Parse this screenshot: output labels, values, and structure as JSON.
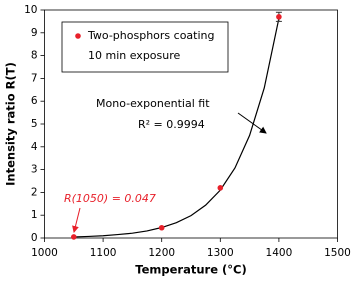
{
  "chart_data": {
    "type": "scatter",
    "xlabel": "Temperature (°C)",
    "ylabel": "Intensity ratio R(T)",
    "xlim": [
      1000,
      1500
    ],
    "xticks": [
      1000,
      1100,
      1200,
      1300,
      1400,
      1500
    ],
    "ylim": [
      0,
      10
    ],
    "yticks": [
      0,
      1,
      2,
      3,
      4,
      5,
      6,
      7,
      8,
      9,
      10
    ],
    "grid": false,
    "series": [
      {
        "name": "Two-phosphors coating",
        "color": "#e8202a",
        "x": [
          1050,
          1200,
          1300,
          1400
        ],
        "values": [
          0.047,
          0.45,
          2.2,
          9.7
        ],
        "errors": [
          null,
          null,
          null,
          0.2
        ]
      }
    ],
    "legend_note": "10 min exposure",
    "fit": {
      "name": "Mono-exponential fit",
      "color": "#000000",
      "x": [
        1050,
        1075,
        1100,
        1125,
        1150,
        1175,
        1200,
        1225,
        1250,
        1275,
        1300,
        1325,
        1350,
        1375,
        1400
      ],
      "values": [
        0.047,
        0.069,
        0.1,
        0.15,
        0.21,
        0.31,
        0.46,
        0.67,
        0.98,
        1.44,
        2.1,
        3.07,
        4.5,
        6.58,
        9.63
      ]
    },
    "annotations": [
      "R² = 0.9994",
      "R(1050) = 0.047"
    ]
  }
}
